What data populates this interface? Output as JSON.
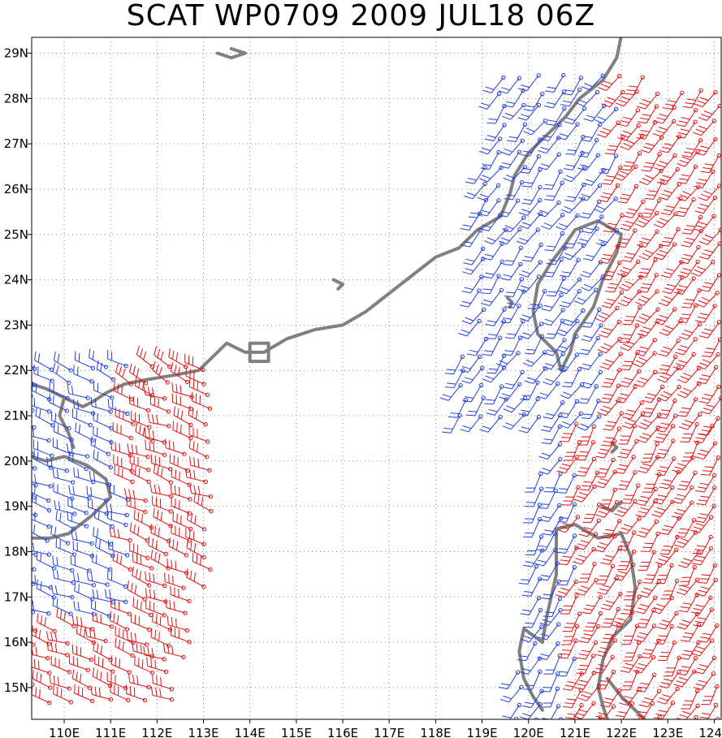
{
  "title": "SCAT WP0709 2009 JUL18 06Z",
  "map": {
    "lon_range": [
      109.3,
      124.15
    ],
    "lat_range": [
      14.3,
      29.35
    ],
    "lon_ticks": [
      {
        "value": 110,
        "label": "110E"
      },
      {
        "value": 111,
        "label": "111E"
      },
      {
        "value": 112,
        "label": "112E"
      },
      {
        "value": 113,
        "label": "113E"
      },
      {
        "value": 114,
        "label": "114E"
      },
      {
        "value": 115,
        "label": "115E"
      },
      {
        "value": 116,
        "label": "116E"
      },
      {
        "value": 117,
        "label": "117E"
      },
      {
        "value": 118,
        "label": "118E"
      },
      {
        "value": 119,
        "label": "119E"
      },
      {
        "value": 120,
        "label": "120E"
      },
      {
        "value": 121,
        "label": "121E"
      },
      {
        "value": 122,
        "label": "122E"
      },
      {
        "value": 123,
        "label": "123E"
      },
      {
        "value": 124,
        "label": "124E"
      }
    ],
    "lat_ticks": [
      {
        "value": 15,
        "label": "15N"
      },
      {
        "value": 16,
        "label": "16N"
      },
      {
        "value": 17,
        "label": "17N"
      },
      {
        "value": 18,
        "label": "18N"
      },
      {
        "value": 19,
        "label": "19N"
      },
      {
        "value": 20,
        "label": "20N"
      },
      {
        "value": 21,
        "label": "21N"
      },
      {
        "value": 22,
        "label": "22N"
      },
      {
        "value": 23,
        "label": "23N"
      },
      {
        "value": 24,
        "label": "24N"
      },
      {
        "value": 25,
        "label": "25N"
      },
      {
        "value": 26,
        "label": "26N"
      },
      {
        "value": 27,
        "label": "27N"
      },
      {
        "value": 28,
        "label": "28N"
      },
      {
        "value": 29,
        "label": "29N"
      }
    ],
    "grid": "dotted",
    "colors": {
      "coast": "#808080",
      "slow_wind": "#1f3fe0",
      "fast_wind": "#e01010",
      "grid": "#888888",
      "frame": "#000000"
    },
    "coastlines": {
      "china_coast": [
        [
          109.3,
          21.7
        ],
        [
          109.6,
          21.6
        ],
        [
          110.0,
          21.4
        ],
        [
          110.4,
          21.2
        ],
        [
          110.6,
          21.3
        ],
        [
          110.9,
          21.5
        ],
        [
          111.3,
          21.7
        ],
        [
          111.8,
          21.8
        ],
        [
          112.4,
          21.9
        ],
        [
          112.9,
          22.0
        ],
        [
          113.2,
          22.3
        ],
        [
          113.5,
          22.6
        ],
        [
          113.9,
          22.4
        ],
        [
          114.3,
          22.4
        ],
        [
          114.8,
          22.7
        ],
        [
          115.4,
          22.9
        ],
        [
          116.0,
          23.0
        ],
        [
          116.5,
          23.3
        ],
        [
          117.0,
          23.7
        ],
        [
          117.5,
          24.1
        ],
        [
          118.0,
          24.5
        ],
        [
          118.5,
          24.7
        ],
        [
          118.9,
          25.1
        ],
        [
          119.4,
          25.4
        ],
        [
          119.6,
          25.9
        ],
        [
          119.7,
          26.3
        ],
        [
          120.0,
          26.8
        ],
        [
          120.4,
          27.2
        ],
        [
          120.8,
          27.6
        ],
        [
          121.1,
          28.0
        ],
        [
          121.6,
          28.4
        ],
        [
          121.9,
          28.9
        ],
        [
          122.0,
          29.4
        ]
      ],
      "hainan": [
        [
          109.3,
          20.1
        ],
        [
          109.6,
          20.0
        ],
        [
          110.0,
          20.1
        ],
        [
          110.5,
          19.9
        ],
        [
          110.9,
          19.6
        ],
        [
          111.0,
          19.2
        ],
        [
          110.6,
          18.8
        ],
        [
          110.1,
          18.4
        ],
        [
          109.7,
          18.3
        ],
        [
          109.3,
          18.3
        ]
      ],
      "leizhou": [
        [
          110.0,
          21.4
        ],
        [
          109.9,
          21.0
        ],
        [
          110.1,
          20.6
        ],
        [
          110.2,
          20.3
        ]
      ],
      "taiwan": [
        [
          121.0,
          25.1
        ],
        [
          121.5,
          25.3
        ],
        [
          122.0,
          25.0
        ],
        [
          121.9,
          24.6
        ],
        [
          121.6,
          24.0
        ],
        [
          121.4,
          23.4
        ],
        [
          121.0,
          22.8
        ],
        [
          120.9,
          22.4
        ],
        [
          120.7,
          22.0
        ],
        [
          120.6,
          22.4
        ],
        [
          120.2,
          22.8
        ],
        [
          120.1,
          23.3
        ],
        [
          120.2,
          23.9
        ],
        [
          120.5,
          24.4
        ],
        [
          120.8,
          24.8
        ],
        [
          121.0,
          25.1
        ]
      ],
      "luzon": [
        [
          120.6,
          18.5
        ],
        [
          121.0,
          18.6
        ],
        [
          121.5,
          18.3
        ],
        [
          122.0,
          18.4
        ],
        [
          122.2,
          17.9
        ],
        [
          122.3,
          17.2
        ],
        [
          122.2,
          16.5
        ],
        [
          121.8,
          16.1
        ],
        [
          121.6,
          15.6
        ],
        [
          121.5,
          15.0
        ],
        [
          121.6,
          14.6
        ],
        [
          121.7,
          14.3
        ]
      ],
      "luzon_west": [
        [
          120.6,
          18.5
        ],
        [
          120.6,
          17.5
        ],
        [
          120.4,
          16.6
        ],
        [
          120.3,
          16.0
        ],
        [
          119.9,
          16.3
        ],
        [
          119.8,
          15.8
        ],
        [
          119.9,
          15.2
        ],
        [
          120.1,
          14.8
        ],
        [
          120.3,
          14.5
        ]
      ],
      "luzon_east": [
        [
          122.5,
          14.3
        ],
        [
          122.0,
          14.8
        ],
        [
          121.7,
          15.2
        ]
      ],
      "pratas_note": [
        [
          114.0,
          22.2
        ],
        [
          114.0,
          22.6
        ],
        [
          114.4,
          22.6
        ],
        [
          114.4,
          22.2
        ],
        [
          114.0,
          22.2
        ]
      ],
      "taiwan_strait_island": [
        [
          119.55,
          23.6
        ],
        [
          119.65,
          23.5
        ],
        [
          119.6,
          23.4
        ]
      ],
      "north_island": [
        [
          113.3,
          29.0
        ],
        [
          113.6,
          28.9
        ],
        [
          113.9,
          29.0
        ],
        [
          113.6,
          29.1
        ]
      ],
      "lake": [
        [
          115.8,
          24.0
        ],
        [
          116.0,
          23.9
        ],
        [
          115.9,
          23.8
        ]
      ],
      "batanes": [
        [
          121.8,
          20.4
        ],
        [
          121.9,
          20.3
        ],
        [
          121.8,
          20.2
        ]
      ],
      "babuyan": [
        [
          121.6,
          19.0
        ],
        [
          121.8,
          18.9
        ],
        [
          122.0,
          19.1
        ]
      ]
    }
  }
}
